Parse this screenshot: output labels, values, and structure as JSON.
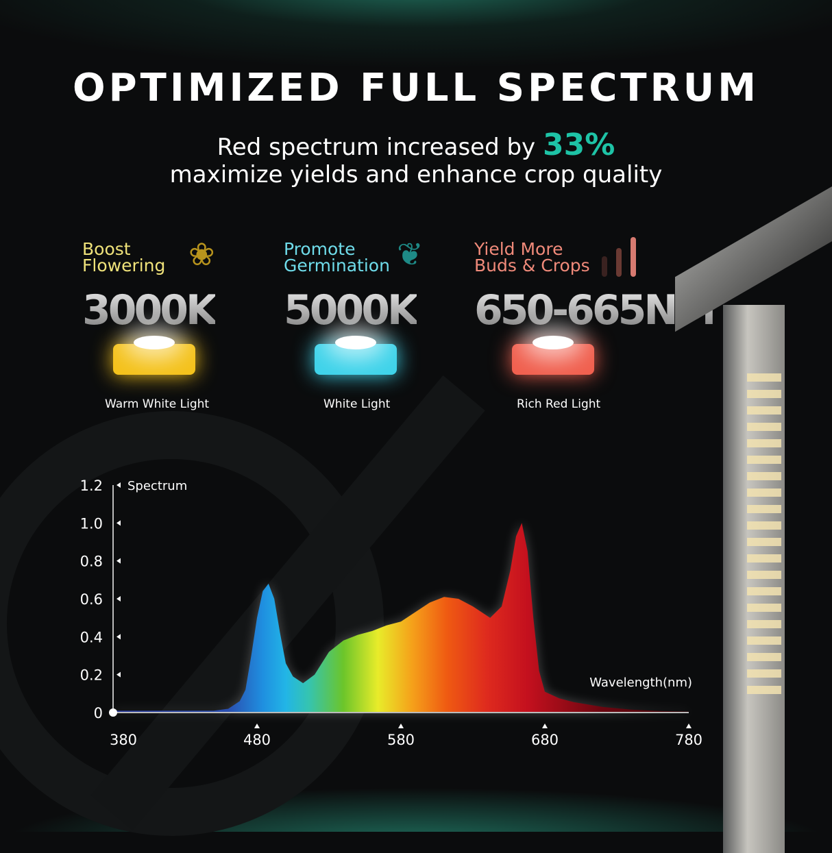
{
  "title": "OPTIMIZED FULL SPECTRUM",
  "subtitle": {
    "line1": "Red spectrum increased by ",
    "highlight": "33%",
    "line2": "maximize yields and enhance crop quality",
    "highlight_color": "#1ec3a6"
  },
  "features": [
    {
      "label": "Boost Flowering",
      "value": "3000K",
      "caption": "Warm White Light",
      "color": "#efe27a",
      "chip": "#f4c21c",
      "icon": "tulip-icon"
    },
    {
      "label": "Promote Germination",
      "value": "5000K",
      "caption": "White Light",
      "color": "#6fdcea",
      "chip": "#3fd3ea",
      "icon": "sprout-icon"
    },
    {
      "label": "Yield More Buds & Crops",
      "value": "650-665NM",
      "caption": "Rich Red Light",
      "color": "#f08a7a",
      "chip": "#f0604f",
      "icon": "bar-growth-icon"
    }
  ],
  "chart_data": {
    "type": "area",
    "title": "",
    "xlabel": "Wavelength(nm)",
    "ylabel": "Spectrum",
    "xlim": [
      380,
      780
    ],
    "ylim": [
      0,
      1.2
    ],
    "xticks": [
      380,
      480,
      580,
      680,
      780
    ],
    "yticks": [
      "0",
      "0.2",
      "0.4",
      "0.6",
      "0.8",
      "1.0",
      "1.2"
    ],
    "grid": false,
    "x": [
      380,
      420,
      450,
      460,
      468,
      472,
      476,
      480,
      484,
      488,
      492,
      496,
      500,
      505,
      512,
      520,
      530,
      540,
      550,
      560,
      570,
      580,
      590,
      600,
      610,
      620,
      630,
      642,
      650,
      656,
      660,
      664,
      668,
      672,
      676,
      680,
      690,
      700,
      720,
      740,
      760,
      780
    ],
    "y": [
      0.01,
      0.01,
      0.01,
      0.02,
      0.06,
      0.12,
      0.3,
      0.5,
      0.64,
      0.68,
      0.6,
      0.42,
      0.26,
      0.19,
      0.155,
      0.2,
      0.32,
      0.38,
      0.41,
      0.43,
      0.46,
      0.48,
      0.53,
      0.58,
      0.61,
      0.6,
      0.56,
      0.5,
      0.56,
      0.75,
      0.93,
      1.0,
      0.85,
      0.5,
      0.22,
      0.11,
      0.075,
      0.055,
      0.03,
      0.015,
      0.008,
      0.005
    ]
  }
}
